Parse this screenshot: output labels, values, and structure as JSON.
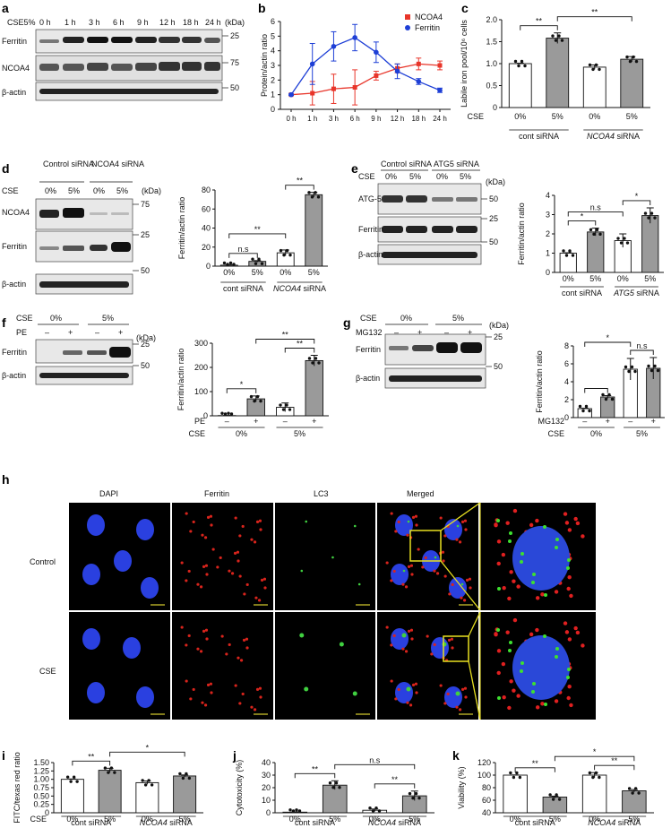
{
  "panels": {
    "a": {
      "letter": "a",
      "treatment": "CSE5%",
      "times": [
        "0 h",
        "1 h",
        "3 h",
        "6 h",
        "9 h",
        "12 h",
        "18 h",
        "24 h"
      ],
      "unit": "(kDa)",
      "bands": [
        {
          "label": "Ferritin",
          "kda": "25"
        },
        {
          "label": "NCOA4",
          "kda": "75"
        },
        {
          "label": "β-actin",
          "kda": "50"
        }
      ]
    },
    "b": {
      "letter": "b"
    },
    "c": {
      "letter": "c"
    },
    "d": {
      "letter": "d",
      "groups": [
        "Control siRNA",
        "NCOA4 siRNA"
      ],
      "cse_label": "CSE",
      "conc": [
        "0%",
        "5%",
        "0%",
        "5%"
      ],
      "unit": "(kDa)",
      "bands": [
        {
          "label": "NCOA4",
          "kda": "75"
        },
        {
          "label": "Ferritin",
          "kda": "25"
        },
        {
          "label": "β-actin",
          "kda": "50"
        }
      ]
    },
    "e": {
      "letter": "e",
      "groups": [
        "Control siRNA",
        "ATG5 siRNA"
      ],
      "cse_label": "CSE",
      "conc": [
        "0%",
        "5%",
        "0%",
        "5%"
      ],
      "unit": "(kDa)",
      "bands": [
        {
          "label": "ATG-5",
          "kda": "50"
        },
        {
          "label": "Ferritin",
          "kda": "25"
        },
        {
          "label": "β-actin",
          "kda": "50"
        }
      ]
    },
    "f": {
      "letter": "f",
      "cse_label": "CSE",
      "pe_label": "PE",
      "conc": [
        "0%",
        "5%"
      ],
      "pe": [
        "–",
        "+",
        "–",
        "+"
      ],
      "unit": "(kDa)",
      "bands": [
        {
          "label": "Ferritin",
          "kda": "25"
        },
        {
          "label": "β-actin",
          "kda": "50"
        }
      ]
    },
    "g": {
      "letter": "g",
      "cse_label": "CSE",
      "mg_label": "MG132",
      "conc": [
        "0%",
        "5%"
      ],
      "mg": [
        "–",
        "+",
        "–",
        "+"
      ],
      "unit": "(kDa)",
      "bands": [
        {
          "label": "Ferritin",
          "kda": "25"
        },
        {
          "label": "β-actin",
          "kda": "50"
        }
      ]
    },
    "h": {
      "letter": "h",
      "columns": [
        "DAPI",
        "Ferritin",
        "LC3",
        "Merged"
      ],
      "rows": [
        "Control",
        "CSE"
      ]
    },
    "i": {
      "letter": "i"
    },
    "j": {
      "letter": "j"
    },
    "k": {
      "letter": "k"
    }
  },
  "chart_data": [
    {
      "id": "b",
      "type": "line",
      "x": [
        "0 h",
        "1 h",
        "3 h",
        "6 h",
        "9 h",
        "12 h",
        "18 h",
        "24 h"
      ],
      "ylabel": "Protein/actin ratio",
      "ylim": [
        0,
        6
      ],
      "yticks": [
        0,
        1,
        2,
        3,
        4,
        5,
        6
      ],
      "legend": "top-right",
      "series": [
        {
          "name": "NCOA4",
          "color": "#e8352a",
          "values": [
            1.0,
            1.1,
            1.4,
            1.5,
            2.3,
            2.8,
            3.1,
            3.0
          ],
          "err": [
            0.05,
            0.8,
            1.0,
            1.2,
            0.3,
            0.3,
            0.4,
            0.3
          ]
        },
        {
          "name": "Ferritin",
          "color": "#1e3fd6",
          "values": [
            1.0,
            3.1,
            4.3,
            4.9,
            3.9,
            2.6,
            1.9,
            1.3
          ],
          "err": [
            0.05,
            1.4,
            1.0,
            0.9,
            0.7,
            0.5,
            0.2,
            0.15
          ]
        }
      ]
    },
    {
      "id": "c",
      "type": "bar",
      "ylabel": "Labile iron pool/10⁶ cells",
      "ylim": [
        0,
        2.0
      ],
      "yticks": [
        "0",
        "0.5",
        "1.0",
        "1.5",
        "2.0"
      ],
      "categories": [
        "0%",
        "5%",
        "0%",
        "5%"
      ],
      "values": [
        1.0,
        1.58,
        0.92,
        1.1
      ],
      "err": [
        0.01,
        0.12,
        0.05,
        0.06
      ],
      "fills": [
        "#ffffff",
        "#9a9a9a",
        "#ffffff",
        "#9a9a9a"
      ],
      "cse_label": "CSE",
      "groups": [
        {
          "label": "cont siRNA",
          "italic_part": ""
        },
        {
          "label": "siRNA",
          "italic_part": "NCOA4"
        }
      ],
      "sig": [
        {
          "a": 0,
          "b": 1,
          "text": "**"
        },
        {
          "a": 1,
          "b": 3,
          "text": "**"
        }
      ]
    },
    {
      "id": "d",
      "type": "bar",
      "ylabel": "Ferritin/actin ratio",
      "ylim": [
        0,
        80
      ],
      "yticks": [
        "0",
        "20",
        "40",
        "60",
        "80"
      ],
      "categories": [
        "0%",
        "5%",
        "0%",
        "5%"
      ],
      "values": [
        1,
        5,
        14,
        75
      ],
      "err": [
        0.3,
        0.8,
        3,
        2.5
      ],
      "fills": [
        "#ffffff",
        "#9a9a9a",
        "#ffffff",
        "#9a9a9a"
      ],
      "cse_label": "",
      "groups": [
        {
          "label": "cont siRNA",
          "italic_part": ""
        },
        {
          "label": "siRNA",
          "italic_part": "NCOA4"
        }
      ],
      "sig": [
        {
          "a": 0,
          "b": 1,
          "text": "n.s"
        },
        {
          "a": 0,
          "b": 2,
          "text": "**"
        },
        {
          "a": 2,
          "b": 3,
          "text": "**"
        }
      ]
    },
    {
      "id": "e",
      "type": "bar",
      "ylabel": "Ferritin/actin ratio",
      "ylim": [
        0,
        4
      ],
      "yticks": [
        "0",
        "1",
        "2",
        "3",
        "4"
      ],
      "categories": [
        "0%",
        "5%",
        "0%",
        "5%"
      ],
      "values": [
        1.0,
        2.1,
        1.65,
        2.95
      ],
      "err": [
        0.02,
        0.2,
        0.35,
        0.4
      ],
      "fills": [
        "#ffffff",
        "#9a9a9a",
        "#ffffff",
        "#9a9a9a"
      ],
      "cse_label": "",
      "groups": [
        {
          "label": "cont siRNA",
          "italic_part": ""
        },
        {
          "label": "siRNA",
          "italic_part": "ATG5"
        }
      ],
      "sig": [
        {
          "a": 0,
          "b": 1,
          "text": "*"
        },
        {
          "a": 0,
          "b": 2,
          "text": "n.s"
        },
        {
          "a": 2,
          "b": 3,
          "text": "*"
        }
      ]
    },
    {
      "id": "f",
      "type": "bar",
      "ylabel": "Ferritin/actin ratio",
      "ylim": [
        0,
        300
      ],
      "yticks": [
        "0",
        "100",
        "200",
        "300"
      ],
      "categories": [
        "–",
        "+",
        "–",
        "+"
      ],
      "values": [
        1,
        70,
        35,
        228
      ],
      "err": [
        0.5,
        12,
        18,
        22
      ],
      "fills": [
        "#ffffff",
        "#9a9a9a",
        "#ffffff",
        "#9a9a9a"
      ],
      "row1_label": "PE",
      "cse_label": "CSE",
      "groups": [
        {
          "label": "0%",
          "italic_part": ""
        },
        {
          "label": "5%",
          "italic_part": ""
        }
      ],
      "sig": [
        {
          "a": 0,
          "b": 1,
          "text": "*"
        },
        {
          "a": 1,
          "b": 3,
          "text": "**"
        },
        {
          "a": 2,
          "b": 3,
          "text": "**"
        }
      ]
    },
    {
      "id": "g",
      "type": "bar",
      "ylabel": "Ferritin/actin ratio",
      "ylim": [
        0,
        8
      ],
      "yticks": [
        "0",
        "2",
        "4",
        "6",
        "8"
      ],
      "categories": [
        "–",
        "+",
        "–",
        "+"
      ],
      "values": [
        1.0,
        2.3,
        5.4,
        5.5
      ],
      "err": [
        0.05,
        0.15,
        1.2,
        1.2
      ],
      "fills": [
        "#ffffff",
        "#9a9a9a",
        "#ffffff",
        "#9a9a9a"
      ],
      "row1_label": "MG132",
      "cse_label": "CSE",
      "groups": [
        {
          "label": "0%",
          "italic_part": ""
        },
        {
          "label": "5%",
          "italic_part": ""
        }
      ],
      "sig": [
        {
          "a": 0,
          "b": 1,
          "text": ""
        },
        {
          "a": 0,
          "b": 2,
          "text": "*"
        },
        {
          "a": 2,
          "b": 3,
          "text": "n.s"
        }
      ]
    },
    {
      "id": "i",
      "type": "bar",
      "ylabel": "FITC/texas red ratio",
      "ylim": [
        0,
        1.5
      ],
      "yticks": [
        "0",
        "0.25",
        "0.50",
        "0.75",
        "1.00",
        "1.25",
        "1.50"
      ],
      "categories": [
        "0%",
        "5%",
        "0%",
        "5%"
      ],
      "values": [
        1.0,
        1.27,
        0.9,
        1.1
      ],
      "err": [
        0.01,
        0.06,
        0.05,
        0.03
      ],
      "fills": [
        "#ffffff",
        "#9a9a9a",
        "#ffffff",
        "#9a9a9a"
      ],
      "cse_label": "CSE",
      "groups": [
        {
          "label": "cont siRNA",
          "italic_part": ""
        },
        {
          "label": "siRNA",
          "italic_part": "NCOA4"
        }
      ],
      "sig": [
        {
          "a": 0,
          "b": 1,
          "text": "**"
        },
        {
          "a": 1,
          "b": 3,
          "text": "*"
        }
      ]
    },
    {
      "id": "j",
      "type": "bar",
      "ylabel": "Cytotoxicity (%)",
      "ylim": [
        0,
        40
      ],
      "yticks": [
        "0",
        "10",
        "20",
        "30",
        "40"
      ],
      "categories": [
        "0%",
        "5%",
        "0%",
        "5%"
      ],
      "values": [
        0.5,
        22,
        2,
        13.5
      ],
      "err": [
        0.2,
        3.5,
        1,
        3.8
      ],
      "fills": [
        "#ffffff",
        "#9a9a9a",
        "#ffffff",
        "#9a9a9a"
      ],
      "cse_label": "",
      "groups": [
        {
          "label": "cont siRNA",
          "italic_part": ""
        },
        {
          "label": "siRNA",
          "italic_part": "NCOA4"
        }
      ],
      "sig": [
        {
          "a": 0,
          "b": 1,
          "text": "**"
        },
        {
          "a": 1,
          "b": 3,
          "text": "n.s"
        },
        {
          "a": 2,
          "b": 3,
          "text": "**"
        }
      ]
    },
    {
      "id": "k",
      "type": "bar",
      "ylabel": "Viability (%)",
      "ylim": [
        40,
        120
      ],
      "yticks": [
        "40",
        "60",
        "80",
        "100",
        "120"
      ],
      "categories": [
        "0%",
        "5%",
        "0%",
        "5%"
      ],
      "values": [
        100,
        65,
        100,
        75
      ],
      "err": [
        0.3,
        1.5,
        4,
        2
      ],
      "fills": [
        "#ffffff",
        "#9a9a9a",
        "#ffffff",
        "#9a9a9a"
      ],
      "cse_label": "",
      "groups": [
        {
          "label": "cont siRNA",
          "italic_part": ""
        },
        {
          "label": "siRNA",
          "italic_part": "NCOA4"
        }
      ],
      "sig": [
        {
          "a": 0,
          "b": 1,
          "text": "**"
        },
        {
          "a": 1,
          "b": 3,
          "text": "*"
        },
        {
          "a": 2,
          "b": 3,
          "text": "**"
        }
      ]
    }
  ]
}
